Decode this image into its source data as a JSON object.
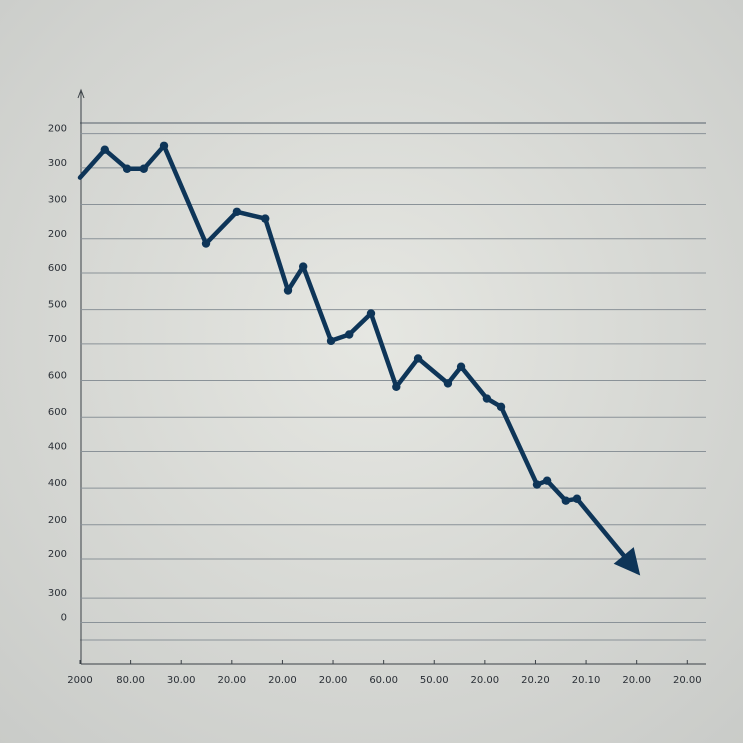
{
  "chart_data": {
    "type": "line",
    "x": [
      0,
      0.49,
      0.93,
      1.26,
      1.66,
      2.49,
      3.1,
      3.66,
      4.11,
      4.41,
      4.96,
      5.32,
      5.75,
      6.25,
      6.68,
      7.27,
      7.53,
      8.04,
      8.32,
      9.03,
      9.23,
      9.6,
      9.82,
      11.07
    ],
    "series": [
      {
        "color": "#0e3558",
        "values": [
          900,
          957,
          918,
          918,
          965,
          765,
          830,
          816,
          669,
          718,
          566,
          579,
          622,
          472,
          530,
          479,
          513,
          448,
          431,
          272,
          280,
          239,
          243,
          86
        ]
      }
    ],
    "xlim": [
      0,
      12.35
    ],
    "xticks": [
      {
        "value": 0,
        "label": "2000"
      },
      {
        "value": 1,
        "label": "80.00"
      },
      {
        "value": 2,
        "label": "30.00"
      },
      {
        "value": 3,
        "label": "20.00"
      },
      {
        "value": 4,
        "label": "20.00"
      },
      {
        "value": 5,
        "label": "20.00"
      },
      {
        "value": 6,
        "label": "60.00"
      },
      {
        "value": 7,
        "label": "50.00"
      },
      {
        "value": 8,
        "label": "20.00"
      },
      {
        "value": 9,
        "label": "20.20"
      },
      {
        "value": 10,
        "label": "20.10"
      },
      {
        "value": 11,
        "label": "20.00"
      },
      {
        "value": 12,
        "label": "20.00"
      }
    ],
    "ylim": [
      -95,
      1075
    ],
    "yticks": [
      {
        "value": 1000,
        "label": "200"
      },
      {
        "value": 930,
        "label": "300"
      },
      {
        "value": 855,
        "label": "300"
      },
      {
        "value": 785,
        "label": "200"
      },
      {
        "value": 715,
        "label": "600"
      },
      {
        "value": 640,
        "label": "500"
      },
      {
        "value": 570,
        "label": "700"
      },
      {
        "value": 495,
        "label": "600"
      },
      {
        "value": 420,
        "label": "600"
      },
      {
        "value": 350,
        "label": "400"
      },
      {
        "value": 275,
        "label": "400"
      },
      {
        "value": 200,
        "label": "200"
      },
      {
        "value": 130,
        "label": "200"
      },
      {
        "value": 50,
        "label": "300"
      },
      0
    ],
    "grid": true
  }
}
